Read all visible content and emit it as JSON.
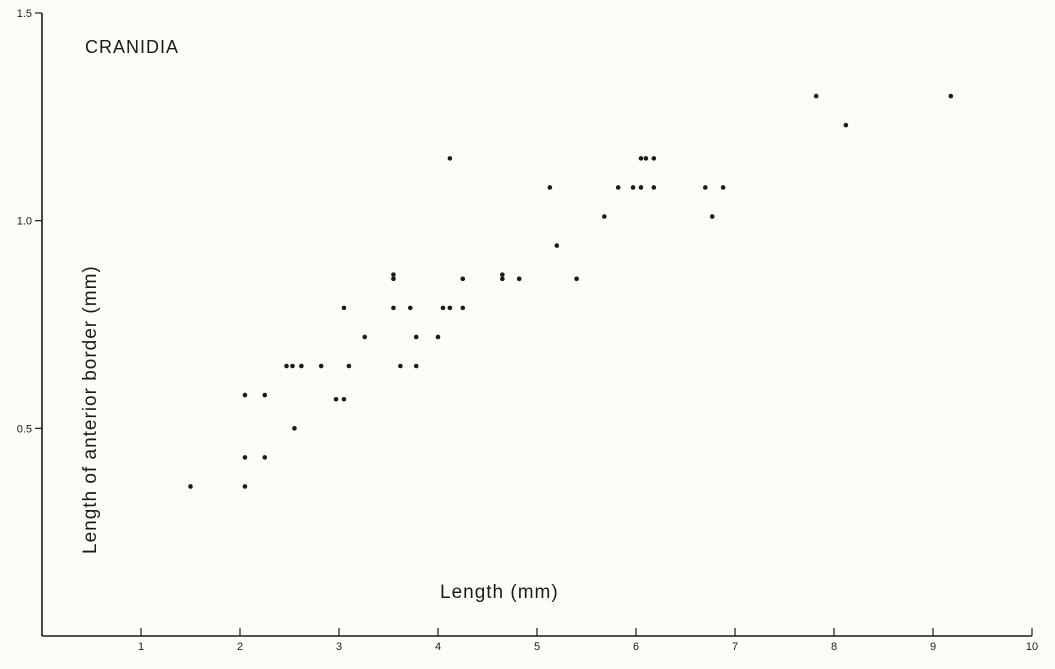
{
  "chart_data": {
    "type": "scatter",
    "title": "CRANIDIA",
    "xlabel": "Length (mm)",
    "ylabel": "Length of anterior border (mm)",
    "xlim": [
      0,
      10
    ],
    "ylim": [
      0,
      1.5
    ],
    "x_ticks": [
      1,
      2,
      3,
      4,
      5,
      6,
      7,
      8,
      9,
      10
    ],
    "x_tick_labels": [
      "1",
      "2",
      "3",
      "4",
      "5",
      "6",
      "7",
      "8",
      "9",
      "10"
    ],
    "y_ticks": [
      0.5,
      1.0,
      1.5
    ],
    "y_tick_labels": [
      "0.5",
      "1.0",
      "1.5"
    ],
    "grid": false,
    "legend": "none",
    "series": [
      {
        "points": [
          [
            1.5,
            0.36
          ],
          [
            2.05,
            0.58
          ],
          [
            2.05,
            0.43
          ],
          [
            2.05,
            0.36
          ],
          [
            2.25,
            0.58
          ],
          [
            2.25,
            0.43
          ],
          [
            2.47,
            0.65
          ],
          [
            2.53,
            0.65
          ],
          [
            2.62,
            0.65
          ],
          [
            2.55,
            0.5
          ],
          [
            2.82,
            0.65
          ],
          [
            2.97,
            0.57
          ],
          [
            3.05,
            0.57
          ],
          [
            3.05,
            0.79
          ],
          [
            3.1,
            0.65
          ],
          [
            3.26,
            0.72
          ],
          [
            3.55,
            0.87
          ],
          [
            3.55,
            0.86
          ],
          [
            3.55,
            0.79
          ],
          [
            3.62,
            0.65
          ],
          [
            3.72,
            0.79
          ],
          [
            3.78,
            0.72
          ],
          [
            3.78,
            0.65
          ],
          [
            4.0,
            0.72
          ],
          [
            4.05,
            0.79
          ],
          [
            4.12,
            0.79
          ],
          [
            4.12,
            1.15
          ],
          [
            4.25,
            0.86
          ],
          [
            4.25,
            0.79
          ],
          [
            4.65,
            0.87
          ],
          [
            4.65,
            0.86
          ],
          [
            4.82,
            0.86
          ],
          [
            5.13,
            1.08
          ],
          [
            5.2,
            0.94
          ],
          [
            5.4,
            0.86
          ],
          [
            5.68,
            1.01
          ],
          [
            5.82,
            1.08
          ],
          [
            5.97,
            1.08
          ],
          [
            6.05,
            1.08
          ],
          [
            6.05,
            1.15
          ],
          [
            6.1,
            1.15
          ],
          [
            6.18,
            1.15
          ],
          [
            6.18,
            1.08
          ],
          [
            6.7,
            1.08
          ],
          [
            6.77,
            1.01
          ],
          [
            6.88,
            1.08
          ],
          [
            7.82,
            1.3
          ],
          [
            8.12,
            1.23
          ],
          [
            9.18,
            1.3
          ]
        ]
      }
    ]
  }
}
